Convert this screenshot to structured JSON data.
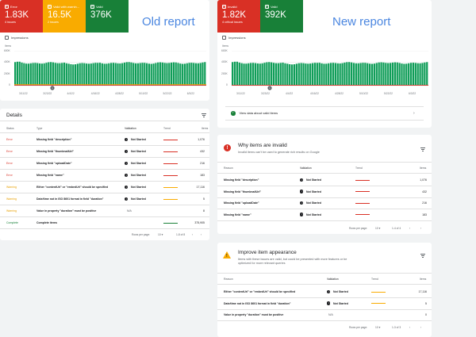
{
  "old": {
    "title": "Old report",
    "cards": [
      {
        "label": "Error",
        "value": "1.83K",
        "sub": "4 issues",
        "color": "#d93025"
      },
      {
        "label": "Valid with warnin...",
        "value": "16.5K",
        "sub": "2 issues",
        "color": "#f9ab00"
      },
      {
        "label": "Valid",
        "value": "376K",
        "sub": "",
        "color": "#188038"
      }
    ],
    "impressions": "Impressions",
    "items_label": "Items",
    "y_ticks": [
      "600K",
      "400K",
      "200K",
      "0"
    ],
    "x_ticks": [
      "3/11/22",
      "3/23/22",
      "4/4/22",
      "4/16/22",
      "4/28/22",
      "5/10/22",
      "5/22/22",
      "6/3/22"
    ],
    "details": {
      "title": "Details",
      "headers": {
        "status": "Status",
        "type": "Type",
        "validation": "Validation",
        "trend": "Trend",
        "items": "Items"
      },
      "rows": [
        {
          "status": "Error",
          "type": "Missing field \"description\"",
          "validation": "Not Started",
          "items": "1,076",
          "trend_color": "#d93025"
        },
        {
          "status": "Error",
          "type": "Missing field \"thumbnailUrl\"",
          "validation": "Not Started",
          "items": "432",
          "trend_color": "#d93025"
        },
        {
          "status": "Error",
          "type": "Missing field \"uploadDate\"",
          "validation": "Not Started",
          "items": "216",
          "trend_color": "#d93025"
        },
        {
          "status": "Error",
          "type": "Missing field \"name\"",
          "validation": "Not Started",
          "items": "183",
          "trend_color": "#d93025"
        },
        {
          "status": "Warning",
          "type": "Either \"contentUrl\" or \"embedUrl\" should be specified",
          "validation": "Not Started",
          "items": "17,116",
          "trend_color": "#f9ab00"
        },
        {
          "status": "Warning",
          "type": "Date/time not in ISO 8601 format in field \"duration\"",
          "validation": "Not Started",
          "items": "5",
          "trend_color": "#f9ab00"
        },
        {
          "status": "Warning",
          "type": "Value in property \"duration\" must be positive",
          "validation": "N/A",
          "items": "8",
          "trend_color": ""
        },
        {
          "status": "Complete",
          "type": "Complete items",
          "validation": "",
          "items": "375,905",
          "trend_color": "#188038"
        }
      ],
      "pager": {
        "rows_label": "Rows per page:",
        "rows_value": "10",
        "range": "1-8 of 8"
      }
    }
  },
  "new": {
    "title": "New report",
    "cards": [
      {
        "label": "Invalid",
        "value": "1.82K",
        "sub": "4 critical issues",
        "color": "#d93025"
      },
      {
        "label": "Valid",
        "value": "392K",
        "sub": "",
        "color": "#188038"
      }
    ],
    "impressions": "Impressions",
    "items_label": "Items",
    "y_ticks": [
      "600K",
      "400K",
      "200K",
      "0"
    ],
    "x_ticks": [
      "3/11/22",
      "3/23/22",
      "4/4/22",
      "4/16/22",
      "4/28/22",
      "5/10/22",
      "5/22/22",
      "6/3/22"
    ],
    "view_valid": "View data about valid items",
    "invalid": {
      "title": "Why items are invalid",
      "desc": "Invalid items can't be used to generate rich results on Google",
      "headers": {
        "reason": "Reason",
        "validation": "Validation",
        "trend": "Trend",
        "items": "Items"
      },
      "rows": [
        {
          "reason": "Missing field \"description\"",
          "validation": "Not Started",
          "items": "1,076"
        },
        {
          "reason": "Missing field \"thumbnailUrl\"",
          "validation": "Not Started",
          "items": "432"
        },
        {
          "reason": "Missing field \"uploadDate\"",
          "validation": "Not Started",
          "items": "216"
        },
        {
          "reason": "Missing field \"name\"",
          "validation": "Not Started",
          "items": "183"
        }
      ],
      "pager": {
        "rows_label": "Rows per page:",
        "rows_value": "10",
        "range": "1-4 of 4"
      }
    },
    "improve": {
      "title": "Improve item appearance",
      "desc1": "Items with these issues are valid, but could be presented with more features or be",
      "desc2": "optimized for more relevant queries",
      "headers": {
        "reason": "Reason",
        "validation": "Validation",
        "trend": "Trend",
        "items": "Items"
      },
      "rows": [
        {
          "reason": "Either \"contentUrl\" or \"embedUrl\" should be specified",
          "validation": "Not Started",
          "items": "17,116"
        },
        {
          "reason": "Date/time not in ISO 8601 format in field \"duration\"",
          "validation": "Not Started",
          "items": "5"
        },
        {
          "reason": "Value in property \"duration\" must be positive",
          "validation": "N/A",
          "items": "0"
        }
      ],
      "pager": {
        "rows_label": "Rows per page:",
        "rows_value": "10",
        "range": "1-3 of 3"
      }
    }
  },
  "chart_data": [
    {
      "type": "bar",
      "ylabel": "Items",
      "ylim": [
        0,
        600000
      ],
      "x_range": [
        "3/11/22",
        "6/3/22"
      ],
      "series": [
        {
          "color": "#0f9d58",
          "approx_value": 390000
        }
      ],
      "secondary_lines": [
        {
          "color": "#f9ab00",
          "approx_value": 17000
        },
        {
          "color": "#d93025",
          "approx_value": 1800
        }
      ]
    },
    {
      "type": "bar",
      "ylabel": "Items",
      "ylim": [
        0,
        600000
      ],
      "x_range": [
        "3/11/22",
        "6/3/22"
      ],
      "series": [
        {
          "color": "#0f9d58",
          "approx_value": 390000
        }
      ],
      "secondary_lines": [
        {
          "color": "#d93025",
          "approx_value": 1800
        }
      ]
    }
  ]
}
